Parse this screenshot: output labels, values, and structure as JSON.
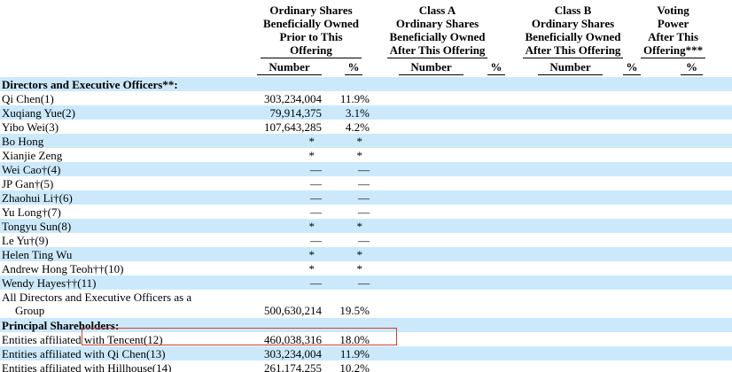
{
  "table": {
    "col_groups": [
      {
        "lines": [
          "Ordinary Shares",
          "Beneficially Owned",
          "Prior to This",
          "Offering"
        ],
        "subs": [
          "Number",
          "%"
        ]
      },
      {
        "lines": [
          "Class A",
          "Ordinary Shares",
          "Beneficially Owned",
          "After This Offering"
        ],
        "subs": [
          "Number",
          "%"
        ]
      },
      {
        "lines": [
          "Class B",
          "Ordinary Shares",
          "Beneficially Owned",
          "After This Offering"
        ],
        "subs": [
          "Number",
          "%"
        ]
      },
      {
        "lines": [
          "Voting Power",
          "After This",
          "Offering***"
        ],
        "subs": [
          "%"
        ]
      }
    ],
    "rows": [
      {
        "label": "Directors and Executive Officers**:",
        "bold": true,
        "number": "",
        "pct": ""
      },
      {
        "label": "Qi Chen(1)",
        "number": "303,234,004",
        "pct": "11.9%"
      },
      {
        "label": "Xuqiang Yue(2)",
        "number": "79,914,375",
        "pct": "3.1%"
      },
      {
        "label": "Yibo Wei(3)",
        "number": "107,643,285",
        "pct": "4.2%"
      },
      {
        "label": "Bo Hong",
        "number": "*",
        "pct": "*"
      },
      {
        "label": "Xianjie Zeng",
        "number": "*",
        "pct": "*"
      },
      {
        "label": "Wei Cao†(4)",
        "number": "—",
        "pct": "—"
      },
      {
        "label": "JP Gan†(5)",
        "number": "—",
        "pct": "—"
      },
      {
        "label": "Zhaohui Li†(6)",
        "number": "—",
        "pct": "—"
      },
      {
        "label": "Yu Long†(7)",
        "number": "—",
        "pct": "—"
      },
      {
        "label": "Tongyu Sun(8)",
        "number": "*",
        "pct": "*"
      },
      {
        "label": "Le Yu†(9)",
        "number": "—",
        "pct": "—"
      },
      {
        "label": "Helen Ting Wu",
        "number": "*",
        "pct": "*"
      },
      {
        "label": "Andrew Hong Teoh††(10)",
        "number": "*",
        "pct": "*"
      },
      {
        "label": "Wendy Hayes††(11)",
        "number": "—",
        "pct": "—"
      },
      {
        "label": "All Directors and Executive Officers as a",
        "label2": "Group",
        "two_line": true,
        "number": "500,630,214",
        "pct": "19.5%"
      },
      {
        "label": "Principal Shareholders:",
        "bold": true,
        "number": "",
        "pct": ""
      },
      {
        "label": "Entities affiliated with Tencent(12)",
        "number": "460,038,316",
        "pct": "18.0%",
        "highlighted": true
      },
      {
        "label": "Entities affiliated with Qi Chen(13)",
        "number": "303,234,004",
        "pct": "11.9%"
      },
      {
        "label": "Entities affiliated with Hillhouse(14)",
        "number": "261,174,255",
        "pct": "10.2%"
      }
    ]
  },
  "colors": {
    "stripe_blue": "#cce9fc",
    "highlight_red": "#cf3d32",
    "text": "#000000"
  },
  "highlight_box": {
    "target_row_label": "Entities affiliated with Tencent(12)"
  }
}
